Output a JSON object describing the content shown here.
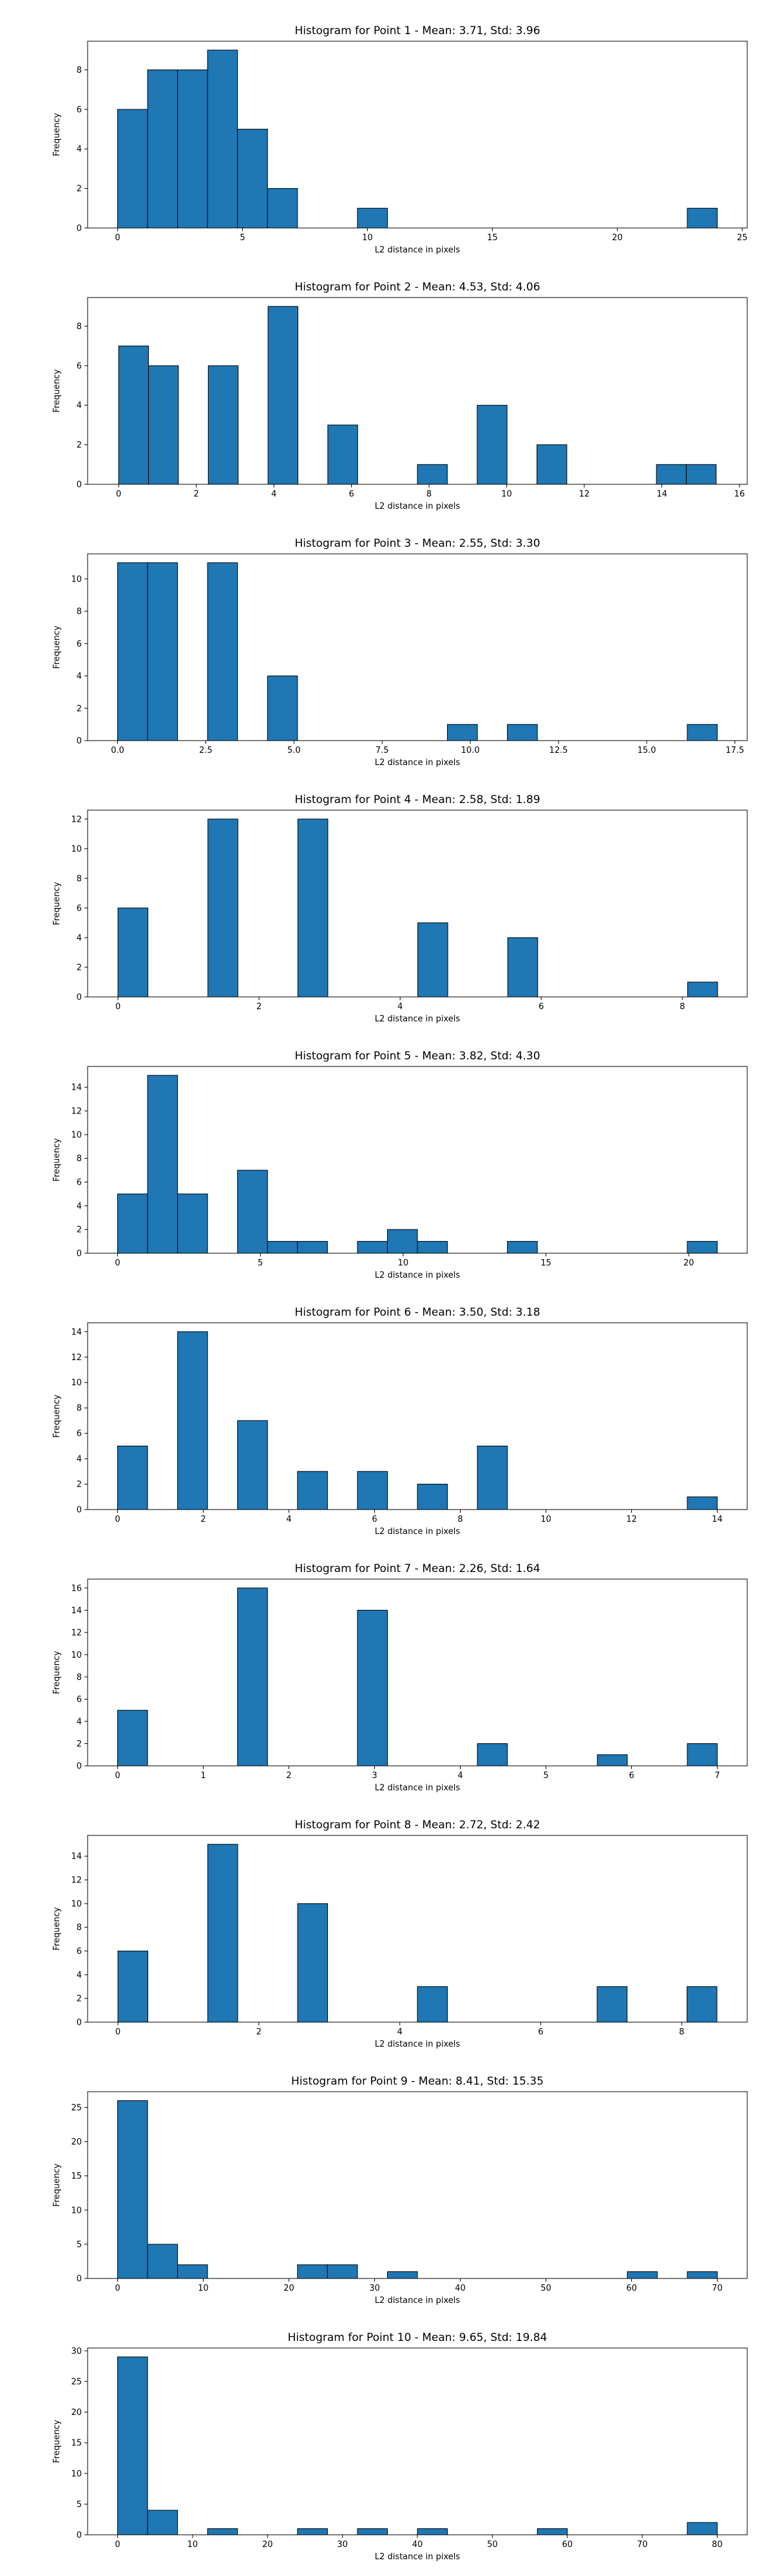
{
  "colors": {
    "bar": "#1f77b4",
    "edge": "#000000"
  },
  "chart_data": [
    {
      "type": "bar",
      "title": "Histogram for Point 1 - Mean: 3.71, Std: 3.96",
      "xlabel": "L2 distance in pixels",
      "ylabel": "Frequency",
      "xlim": [
        -1.2,
        25.2
      ],
      "ylim": [
        0,
        9.45
      ],
      "xticks": [
        0,
        5,
        10,
        15,
        20,
        25
      ],
      "yticks": [
        0,
        2,
        4,
        6,
        8
      ],
      "bins": [
        [
          0,
          1.2,
          6
        ],
        [
          1.2,
          2.4,
          8
        ],
        [
          2.4,
          3.6,
          8
        ],
        [
          3.6,
          4.8,
          9
        ],
        [
          4.8,
          6.0,
          5
        ],
        [
          6.0,
          7.2,
          2
        ],
        [
          9.6,
          10.8,
          1
        ],
        [
          22.8,
          24.0,
          1
        ]
      ]
    },
    {
      "type": "bar",
      "title": "Histogram for Point 2 - Mean: 4.53, Std: 4.06",
      "xlabel": "L2 distance in pixels",
      "ylabel": "Frequency",
      "xlim": [
        -0.8,
        16.2
      ],
      "ylim": [
        0,
        9.45
      ],
      "xticks": [
        0,
        2,
        4,
        6,
        8,
        10,
        12,
        14,
        16
      ],
      "yticks": [
        0,
        2,
        4,
        6,
        8
      ],
      "bins": [
        [
          0,
          0.77,
          7
        ],
        [
          0.77,
          1.54,
          6
        ],
        [
          2.31,
          3.08,
          6
        ],
        [
          3.85,
          4.62,
          9
        ],
        [
          5.39,
          6.16,
          3
        ],
        [
          7.7,
          8.47,
          1
        ],
        [
          9.24,
          10.01,
          4
        ],
        [
          10.78,
          11.55,
          2
        ],
        [
          13.86,
          14.63,
          1
        ],
        [
          14.63,
          15.4,
          1
        ]
      ]
    },
    {
      "type": "bar",
      "title": "Histogram for Point 3 - Mean: 2.55, Std: 3.30",
      "xlabel": "L2 distance in pixels",
      "ylabel": "Frequency",
      "xlim": [
        -0.85,
        17.85
      ],
      "ylim": [
        0,
        11.55
      ],
      "xticks": [
        0.0,
        2.5,
        5.0,
        7.5,
        10.0,
        12.5,
        15.0,
        17.5
      ],
      "yticks": [
        0,
        2,
        4,
        6,
        8,
        10
      ],
      "bins": [
        [
          0,
          0.85,
          11
        ],
        [
          0.85,
          1.7,
          11
        ],
        [
          2.55,
          3.4,
          11
        ],
        [
          4.25,
          5.1,
          4
        ],
        [
          9.35,
          10.2,
          1
        ],
        [
          11.05,
          11.9,
          1
        ],
        [
          16.15,
          17.0,
          1
        ]
      ]
    },
    {
      "type": "bar",
      "title": "Histogram for Point 4 - Mean: 2.58, Std: 1.89",
      "xlabel": "L2 distance in pixels",
      "ylabel": "Frequency",
      "xlim": [
        -0.43,
        8.92
      ],
      "ylim": [
        0,
        12.6
      ],
      "xticks": [
        0,
        2,
        4,
        6,
        8
      ],
      "yticks": [
        0,
        2,
        4,
        6,
        8,
        10,
        12
      ],
      "bins": [
        [
          0,
          0.425,
          6
        ],
        [
          1.275,
          1.7,
          12
        ],
        [
          2.55,
          2.975,
          12
        ],
        [
          4.25,
          4.675,
          5
        ],
        [
          5.525,
          5.95,
          4
        ],
        [
          8.075,
          8.5,
          1
        ]
      ]
    },
    {
      "type": "bar",
      "title": "Histogram for Point 5 - Mean: 3.82, Std: 4.30",
      "xlabel": "L2 distance in pixels",
      "ylabel": "Frequency",
      "xlim": [
        -1.05,
        22.05
      ],
      "ylim": [
        0,
        15.75
      ],
      "xticks": [
        0,
        5,
        10,
        15,
        20
      ],
      "yticks": [
        0,
        2,
        4,
        6,
        8,
        10,
        12,
        14
      ],
      "bins": [
        [
          0,
          1.05,
          5
        ],
        [
          1.05,
          2.1,
          15
        ],
        [
          2.1,
          3.15,
          5
        ],
        [
          4.2,
          5.25,
          7
        ],
        [
          5.25,
          6.3,
          1
        ],
        [
          6.3,
          7.35,
          1
        ],
        [
          8.4,
          9.45,
          1
        ],
        [
          9.45,
          10.5,
          2
        ],
        [
          10.5,
          11.55,
          1
        ],
        [
          13.65,
          14.7,
          1
        ],
        [
          19.95,
          21.0,
          1
        ]
      ]
    },
    {
      "type": "bar",
      "title": "Histogram for Point 6 - Mean: 3.50, Std: 3.18",
      "xlabel": "L2 distance in pixels",
      "ylabel": "Frequency",
      "xlim": [
        -0.7,
        14.7
      ],
      "ylim": [
        0,
        14.7
      ],
      "xticks": [
        0,
        2,
        4,
        6,
        8,
        10,
        12,
        14
      ],
      "yticks": [
        0,
        2,
        4,
        6,
        8,
        10,
        12,
        14
      ],
      "bins": [
        [
          0,
          0.7,
          5
        ],
        [
          1.4,
          2.1,
          14
        ],
        [
          2.8,
          3.5,
          7
        ],
        [
          4.2,
          4.9,
          3
        ],
        [
          5.6,
          6.3,
          3
        ],
        [
          7.0,
          7.7,
          2
        ],
        [
          8.4,
          9.1,
          5
        ],
        [
          13.3,
          14.0,
          1
        ]
      ]
    },
    {
      "type": "bar",
      "title": "Histogram for Point 7 - Mean: 2.26, Std: 1.64",
      "xlabel": "L2 distance in pixels",
      "ylabel": "Frequency",
      "xlim": [
        -0.35,
        7.35
      ],
      "ylim": [
        0,
        16.8
      ],
      "xticks": [
        0,
        1,
        2,
        3,
        4,
        5,
        6,
        7
      ],
      "yticks": [
        0,
        2,
        4,
        6,
        8,
        10,
        12,
        14,
        16
      ],
      "bins": [
        [
          0,
          0.35,
          5
        ],
        [
          1.4,
          1.75,
          16
        ],
        [
          2.8,
          3.15,
          14
        ],
        [
          4.2,
          4.55,
          2
        ],
        [
          5.6,
          5.95,
          1
        ],
        [
          6.65,
          7.0,
          2
        ]
      ]
    },
    {
      "type": "bar",
      "title": "Histogram for Point 8 - Mean: 2.72, Std: 2.42",
      "xlabel": "L2 distance in pixels",
      "ylabel": "Frequency",
      "xlim": [
        -0.43,
        8.93
      ],
      "ylim": [
        0,
        15.75
      ],
      "xticks": [
        0,
        2,
        4,
        6,
        8
      ],
      "yticks": [
        0,
        2,
        4,
        6,
        8,
        10,
        12,
        14
      ],
      "bins": [
        [
          0,
          0.425,
          6
        ],
        [
          1.275,
          1.7,
          15
        ],
        [
          2.55,
          2.975,
          10
        ],
        [
          4.25,
          4.675,
          3
        ],
        [
          6.8,
          7.225,
          3
        ],
        [
          8.075,
          8.5,
          3
        ]
      ]
    },
    {
      "type": "bar",
      "title": "Histogram for Point 9 - Mean: 8.41, Std: 15.35",
      "xlabel": "L2 distance in pixels",
      "ylabel": "Frequency",
      "xlim": [
        -3.5,
        73.5
      ],
      "ylim": [
        0,
        27.3
      ],
      "xticks": [
        0,
        10,
        20,
        30,
        40,
        50,
        60,
        70
      ],
      "yticks": [
        0,
        5,
        10,
        15,
        20,
        25
      ],
      "bins": [
        [
          0,
          3.5,
          26
        ],
        [
          3.5,
          7.0,
          5
        ],
        [
          7.0,
          10.5,
          2
        ],
        [
          21.0,
          24.5,
          2
        ],
        [
          24.5,
          28.0,
          2
        ],
        [
          31.5,
          35.0,
          1
        ],
        [
          59.5,
          63.0,
          1
        ],
        [
          66.5,
          70.0,
          1
        ]
      ]
    },
    {
      "type": "bar",
      "title": "Histogram for Point 10 - Mean: 9.65, Std: 19.84",
      "xlabel": "L2 distance in pixels",
      "ylabel": "Frequency",
      "xlim": [
        -4.0,
        84.0
      ],
      "ylim": [
        0,
        30.45
      ],
      "xticks": [
        0,
        10,
        20,
        30,
        40,
        50,
        60,
        70,
        80
      ],
      "yticks": [
        0,
        5,
        10,
        15,
        20,
        25,
        30
      ],
      "bins": [
        [
          0,
          4.0,
          29
        ],
        [
          4.0,
          8.0,
          4
        ],
        [
          12.0,
          16.0,
          1
        ],
        [
          24.0,
          28.0,
          1
        ],
        [
          32.0,
          36.0,
          1
        ],
        [
          40.0,
          44.0,
          1
        ],
        [
          56.0,
          60.0,
          1
        ],
        [
          76.0,
          80.0,
          2
        ]
      ]
    }
  ]
}
